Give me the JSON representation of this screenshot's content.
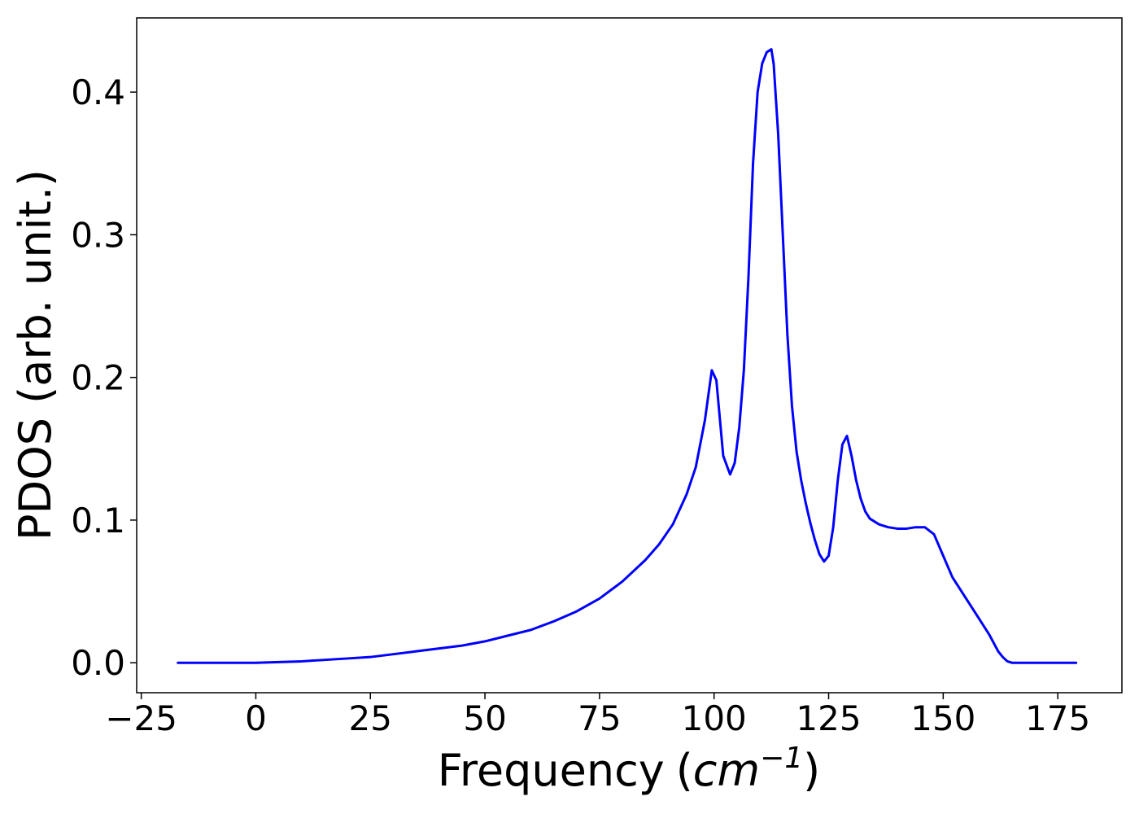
{
  "chart_data": {
    "type": "line",
    "title": "",
    "xlabel": "Frequency",
    "xlabel_unit": {
      "open": "(",
      "base": "cm",
      "exponent": "−1",
      "close": ")"
    },
    "ylabel": "PDOS (arb. unit.)",
    "xlim": [
      -26,
      189
    ],
    "ylim": [
      -0.021,
      0.452
    ],
    "xticks": [
      -25,
      0,
      25,
      50,
      75,
      100,
      125,
      150,
      175
    ],
    "xtick_labels": [
      "−25",
      "0",
      "25",
      "50",
      "75",
      "100",
      "125",
      "150",
      "175"
    ],
    "yticks": [
      0.0,
      0.1,
      0.2,
      0.3,
      0.4
    ],
    "ytick_labels": [
      "0.0",
      "0.1",
      "0.2",
      "0.3",
      "0.4"
    ],
    "grid": false,
    "legend": "none",
    "series": [
      {
        "color": "#0000ff",
        "x": [
          -17,
          -10,
          0,
          5,
          10,
          15,
          20,
          25,
          30,
          35,
          40,
          45,
          50,
          55,
          60,
          65,
          70,
          75,
          80,
          85,
          88,
          91,
          94,
          96,
          98,
          99.5,
          100.5,
          102,
          103.5,
          104.5,
          105.5,
          106.5,
          107.5,
          108.5,
          109.5,
          110.5,
          111.5,
          112.5,
          113,
          114,
          115,
          116,
          117,
          118,
          119,
          120,
          121,
          122,
          123,
          124,
          125,
          126,
          127,
          128,
          129,
          130,
          131,
          132,
          133,
          134,
          135,
          136,
          138,
          140,
          142,
          144,
          146,
          148,
          150,
          152,
          154,
          156,
          158,
          160,
          162,
          163,
          164,
          165,
          166,
          170,
          179
        ],
        "values": [
          0.0,
          0.0,
          0.0,
          0.0005,
          0.001,
          0.002,
          0.003,
          0.004,
          0.006,
          0.008,
          0.01,
          0.012,
          0.015,
          0.019,
          0.023,
          0.029,
          0.036,
          0.045,
          0.057,
          0.072,
          0.083,
          0.097,
          0.118,
          0.137,
          0.17,
          0.205,
          0.198,
          0.145,
          0.132,
          0.14,
          0.165,
          0.205,
          0.27,
          0.35,
          0.4,
          0.42,
          0.428,
          0.43,
          0.42,
          0.37,
          0.3,
          0.23,
          0.18,
          0.148,
          0.128,
          0.112,
          0.098,
          0.086,
          0.076,
          0.071,
          0.075,
          0.095,
          0.128,
          0.153,
          0.159,
          0.145,
          0.128,
          0.115,
          0.106,
          0.101,
          0.099,
          0.097,
          0.095,
          0.094,
          0.094,
          0.095,
          0.095,
          0.09,
          0.075,
          0.06,
          0.05,
          0.04,
          0.03,
          0.02,
          0.008,
          0.004,
          0.001,
          0.0,
          0.0,
          0.0,
          0.0
        ]
      }
    ]
  }
}
